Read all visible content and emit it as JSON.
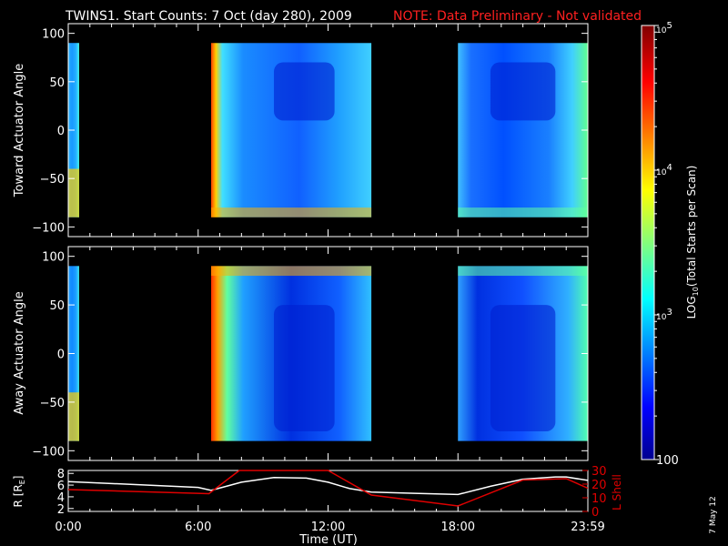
{
  "header": {
    "title": "TWINS1. Start Counts:  7 Oct (day 280), 2009",
    "note": "NOTE: Data Preliminary - Not validated",
    "note_color": "#ff2020"
  },
  "side_date": "7 May 12",
  "chart_data": [
    {
      "type": "heatmap",
      "panel": "toward",
      "ylabel": "Toward Actuator Angle",
      "ylim": [
        -110,
        110
      ],
      "yticks": [
        "100",
        "50",
        "0",
        "-50",
        "-100"
      ],
      "xlim_hours": [
        0,
        24
      ],
      "data_intervals_hours": [
        [
          0,
          0.03
        ],
        [
          6.6,
          14.0
        ],
        [
          18.0,
          24.0
        ]
      ]
    },
    {
      "type": "heatmap",
      "panel": "away",
      "ylabel": "Away Actuator Angle",
      "ylim": [
        -110,
        110
      ],
      "yticks": [
        "100",
        "50",
        "0",
        "-50",
        "-100"
      ],
      "xlim_hours": [
        0,
        24
      ],
      "data_intervals_hours": [
        [
          0,
          0.03
        ],
        [
          6.6,
          14.0
        ],
        [
          18.0,
          24.0
        ]
      ]
    },
    {
      "type": "line",
      "panel": "orbit",
      "ylabel_left": "R [R",
      "ylabel_left_sub": "E",
      "ylabel_left_tail": "]",
      "ylabel_right": "L Shell",
      "yticks_left": [
        "8",
        "6",
        "4",
        "2"
      ],
      "ylim_left": [
        1.5,
        8.5
      ],
      "yticks_right": [
        "30",
        "20",
        "10",
        "0"
      ],
      "ylim_right": [
        0,
        30
      ],
      "xlabel": "Time (UT)",
      "xticks": [
        "0:00",
        "6:00",
        "12:00",
        "18:00",
        "23:59"
      ],
      "series": [
        {
          "color": "#ffffff",
          "x": [
            0,
            6,
            6.6,
            8,
            9.5,
            11,
            12,
            13,
            14,
            16,
            18,
            19.5,
            21,
            22.5,
            23,
            24
          ],
          "y": [
            6.6,
            5.6,
            5.1,
            6.5,
            7.3,
            7.2,
            6.5,
            5.4,
            4.8,
            4.6,
            4.4,
            5.8,
            7.0,
            7.4,
            7.4,
            6.8
          ]
        },
        {
          "color": "#e00000",
          "x": [
            0,
            6.5,
            7.9,
            12,
            14,
            18,
            21,
            23,
            24
          ],
          "y": [
            16,
            13,
            30,
            30,
            12,
            4,
            23,
            24,
            17
          ]
        }
      ]
    },
    {
      "type": "colorbar",
      "label_prefix": "LOG",
      "label_sub": "10",
      "label_suffix": "(Total Starts per Scan)",
      "ticks": [
        {
          "value": 100000,
          "base": "10",
          "exp": "5"
        },
        {
          "value": 10000,
          "base": "10",
          "exp": "4"
        },
        {
          "value": 1000,
          "base": "10",
          "exp": "3"
        },
        {
          "value": 100,
          "text": "100"
        }
      ],
      "range": [
        100,
        100000
      ],
      "scale": "log"
    }
  ]
}
